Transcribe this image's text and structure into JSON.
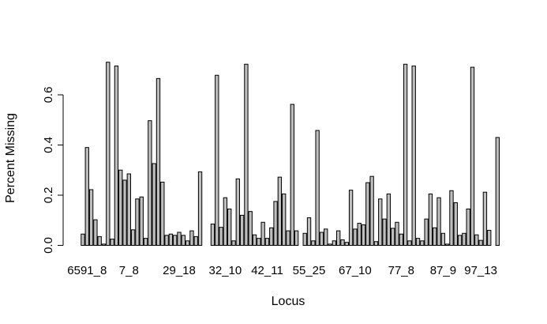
{
  "chart_data": {
    "type": "bar",
    "title": "",
    "xlabel": "Locus",
    "ylabel": "Percent Missing",
    "ylim": [
      0,
      0.72
    ],
    "yticks": [
      0.0,
      0.2,
      0.4,
      0.6
    ],
    "ytick_labels": [
      "0.0",
      "0.2",
      "0.4",
      "0.6"
    ],
    "xtick_labels": [
      "6591_8",
      "7_8",
      "29_18",
      "32_10",
      "42_11",
      "55_25",
      "67_10",
      "77_8",
      "87_9",
      "97_13"
    ],
    "xtick_bar_index": [
      2,
      12,
      24,
      35,
      45,
      55,
      66,
      77,
      87,
      96
    ],
    "grid": false,
    "legend": "none",
    "values": [
      0.0,
      0.045,
      0.39,
      0.222,
      0.102,
      0.035,
      0.005,
      0.73,
      0.025,
      0.715,
      0.3,
      0.26,
      0.285,
      0.062,
      0.185,
      0.193,
      0.028,
      0.497,
      0.326,
      0.665,
      0.252,
      0.04,
      0.045,
      0.04,
      0.052,
      0.04,
      0.018,
      0.058,
      0.035,
      0.293,
      0.0,
      0.0,
      0.085,
      0.678,
      0.072,
      0.19,
      0.145,
      0.018,
      0.265,
      0.12,
      0.722,
      0.135,
      0.042,
      0.028,
      0.092,
      0.028,
      0.07,
      0.175,
      0.272,
      0.205,
      0.058,
      0.562,
      0.058,
      0.0,
      0.048,
      0.11,
      0.018,
      0.458,
      0.052,
      0.065,
      0.005,
      0.018,
      0.058,
      0.022,
      0.012,
      0.22,
      0.065,
      0.088,
      0.082,
      0.25,
      0.275,
      0.015,
      0.185,
      0.105,
      0.205,
      0.068,
      0.092,
      0.045,
      0.722,
      0.018,
      0.715,
      0.028,
      0.018,
      0.105,
      0.205,
      0.07,
      0.19,
      0.048,
      0.005,
      0.218,
      0.17,
      0.04,
      0.048,
      0.145,
      0.71,
      0.042,
      0.02,
      0.212,
      0.06,
      0.0,
      0.43
    ]
  }
}
